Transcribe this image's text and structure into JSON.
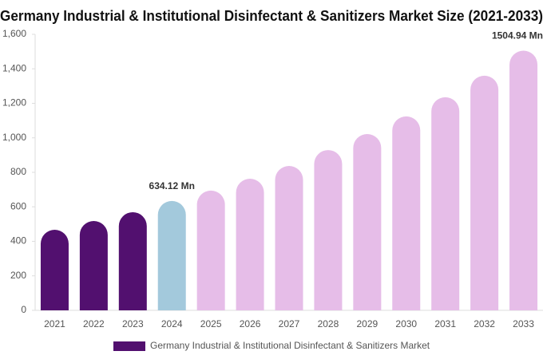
{
  "chart_data": {
    "type": "bar",
    "title": "Germany Industrial & Institutional Disinfectant & Sanitizers Market Size (2021-2033)",
    "categories": [
      "2021",
      "2022",
      "2023",
      "2024",
      "2025",
      "2026",
      "2027",
      "2028",
      "2029",
      "2030",
      "2031",
      "2032",
      "2033"
    ],
    "series": [
      {
        "name": "Germany Industrial & Institutional Disinfectant & Sanitizers Market",
        "color": "#52106f",
        "values": [
          467,
          518,
          569,
          634.12,
          694,
          763,
          837,
          929,
          1022,
          1124,
          1235,
          1360,
          1504.94
        ],
        "value_labels": [
          null,
          null,
          null,
          "634.12 Mn",
          null,
          null,
          null,
          null,
          null,
          null,
          null,
          null,
          "1504.94 Mn"
        ],
        "colors": [
          "#52106f",
          "#52106f",
          "#52106f",
          "#a3c9dc",
          "#e6bde8",
          "#e6bde8",
          "#e6bde8",
          "#e6bde8",
          "#e6bde8",
          "#e6bde8",
          "#e6bde8",
          "#e6bde8",
          "#e6bde8"
        ]
      }
    ],
    "ylim": [
      0,
      1600
    ],
    "yticks": [
      0,
      200,
      400,
      600,
      800,
      {
        "value": 1000,
        "label": "1,000"
      },
      {
        "value": 1200,
        "label": "1,200"
      },
      {
        "value": 1400,
        "label": "1,400"
      },
      {
        "value": 1600,
        "label": "1,600"
      }
    ],
    "grid": false
  }
}
